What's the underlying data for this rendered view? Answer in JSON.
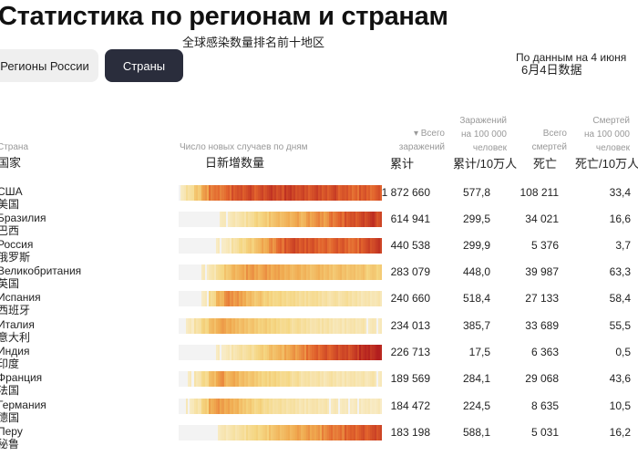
{
  "page": {
    "title": "Статистика по регионам и странам",
    "subtitle_cn": "全球感染数量排名前十地区",
    "data_note": "По данным на 4 июня",
    "data_note_cn": "6月4日数据"
  },
  "tabs": [
    {
      "label": "Регионы России",
      "active": false
    },
    {
      "label": "Страны",
      "active": true
    }
  ],
  "columns": {
    "country": "Страна",
    "country_cn": "国家",
    "chart": "Число новых случаев по дням",
    "chart_cn": "日新增数量",
    "total_line1": "▾ Всего",
    "total_line2": "заражений",
    "total_cn": "累计",
    "per100_line1": "Заражений",
    "per100_line2": "на 100 000",
    "per100_line3": "человек",
    "per100_cn": "累计/10万人",
    "deaths_line1": "Всего",
    "deaths_line2": "смертей",
    "deaths_cn": "死亡",
    "dper100_line1": "Смертей",
    "dper100_line2": "на 100 000",
    "dper100_line3": "человек",
    "dper100_cn": "死亡/10万人"
  },
  "colors": {
    "tab_active": "#2a2d3c",
    "tab_inactive": "#efefef",
    "heat_low": "#f7e3a6",
    "heat_mid": "#f2b151",
    "heat_high": "#e0572a",
    "heat_max": "#b5201f"
  },
  "rows": [
    {
      "country": "США",
      "country_cn": "美国",
      "total": "1 872 660",
      "per100": "577,8",
      "deaths": "108 211",
      "dper100": "33,4",
      "heat": [
        0.05,
        0.2,
        0.4,
        0.6,
        0.7,
        0.7,
        0.75,
        0.8,
        0.8,
        0.85,
        0.8,
        0.85,
        0.9,
        0.85,
        0.9,
        0.85,
        0.85,
        0.8,
        0.85,
        0.8,
        0.85,
        0.8,
        0.8,
        0.75,
        0.8,
        0.75,
        0.8
      ]
    },
    {
      "country": "Бразилия",
      "country_cn": "巴西",
      "total": "614 941",
      "per100": "299,5",
      "deaths": "34 021",
      "dper100": "16,6",
      "heat": [
        0,
        0,
        0,
        0,
        0,
        0.02,
        0.05,
        0.1,
        0.15,
        0.2,
        0.3,
        0.35,
        0.4,
        0.45,
        0.5,
        0.55,
        0.5,
        0.6,
        0.65,
        0.6,
        0.7,
        0.75,
        0.8,
        0.8,
        0.85,
        0.9,
        0.85
      ]
    },
    {
      "country": "Россия",
      "country_cn": "俄罗斯",
      "total": "440 538",
      "per100": "299,9",
      "deaths": "5 376",
      "dper100": "3,7",
      "heat": [
        0,
        0,
        0,
        0,
        0,
        0.02,
        0.05,
        0.15,
        0.25,
        0.35,
        0.45,
        0.55,
        0.65,
        0.75,
        0.8,
        0.85,
        0.8,
        0.8,
        0.75,
        0.75,
        0.75,
        0.8,
        0.75,
        0.75,
        0.8,
        0.85,
        0.9
      ]
    },
    {
      "country": "Великобритания",
      "country_cn": "英国",
      "total": "283 079",
      "per100": "448,0",
      "deaths": "39 987",
      "dper100": "63,3",
      "heat": [
        0,
        0,
        0,
        0.03,
        0.1,
        0.25,
        0.4,
        0.5,
        0.55,
        0.6,
        0.55,
        0.6,
        0.55,
        0.55,
        0.5,
        0.5,
        0.5,
        0.45,
        0.5,
        0.45,
        0.4,
        0.45,
        0.4,
        0.4,
        0.4,
        0.35,
        0.35
      ]
    },
    {
      "country": "Испания",
      "country_cn": "西班牙",
      "total": "240 660",
      "per100": "518,4",
      "deaths": "27 133",
      "dper100": "58,4",
      "heat": [
        0,
        0,
        0,
        0.05,
        0.25,
        0.5,
        0.65,
        0.6,
        0.55,
        0.45,
        0.4,
        0.35,
        0.3,
        0.3,
        0.25,
        0.25,
        0.2,
        0.2,
        0.2,
        0.15,
        0.15,
        0.15,
        0.2,
        0.15,
        0.1,
        0.1,
        0.1
      ]
    },
    {
      "country": "Италия",
      "country_cn": "意大利",
      "total": "234 013",
      "per100": "385,7",
      "deaths": "33 689",
      "dper100": "55,5",
      "heat": [
        0,
        0.05,
        0.15,
        0.3,
        0.45,
        0.55,
        0.55,
        0.5,
        0.45,
        0.4,
        0.35,
        0.35,
        0.3,
        0.25,
        0.25,
        0.2,
        0.2,
        0.15,
        0.15,
        0.15,
        0.1,
        0.1,
        0.1,
        0.1,
        0.1,
        0.05,
        0.05
      ]
    },
    {
      "country": "Индия",
      "country_cn": "印度",
      "total": "226 713",
      "per100": "17,5",
      "deaths": "6 363",
      "dper100": "0,5",
      "heat": [
        0,
        0,
        0,
        0,
        0,
        0.02,
        0.05,
        0.1,
        0.15,
        0.2,
        0.3,
        0.35,
        0.45,
        0.5,
        0.55,
        0.6,
        0.65,
        0.7,
        0.75,
        0.8,
        0.8,
        0.85,
        0.85,
        0.9,
        0.95,
        0.95,
        1.0
      ]
    },
    {
      "country": "Франция",
      "country_cn": "法国",
      "total": "189 569",
      "per100": "284,1",
      "deaths": "29 068",
      "dper100": "43,6",
      "heat": [
        0,
        0.02,
        0.1,
        0.25,
        0.45,
        0.6,
        0.5,
        0.55,
        0.45,
        0.4,
        0.35,
        0.3,
        0.3,
        0.25,
        0.25,
        0.2,
        0.15,
        0.15,
        0.15,
        0.1,
        0.15,
        0.1,
        0.1,
        0.1,
        0.1,
        0.1,
        0.05
      ]
    },
    {
      "country": "Германия",
      "country_cn": "德国",
      "total": "184 472",
      "per100": "224,5",
      "deaths": "8 635",
      "dper100": "10,5",
      "heat": [
        0,
        0.05,
        0.15,
        0.35,
        0.55,
        0.6,
        0.55,
        0.5,
        0.4,
        0.35,
        0.3,
        0.25,
        0.2,
        0.2,
        0.15,
        0.15,
        0.1,
        0.1,
        0.1,
        0.1,
        0.05,
        0.05,
        0.05,
        0.05,
        0.05,
        0.05,
        0.05
      ]
    },
    {
      "country": "Перу",
      "country_cn": "秘鲁",
      "total": "183 198",
      "per100": "588,1",
      "deaths": "5 031",
      "dper100": "16,2",
      "heat": [
        0,
        0,
        0,
        0,
        0,
        0.05,
        0.1,
        0.15,
        0.2,
        0.25,
        0.3,
        0.35,
        0.4,
        0.45,
        0.5,
        0.55,
        0.55,
        0.6,
        0.6,
        0.65,
        0.7,
        0.7,
        0.75,
        0.75,
        0.8,
        0.8,
        0.85
      ]
    }
  ]
}
